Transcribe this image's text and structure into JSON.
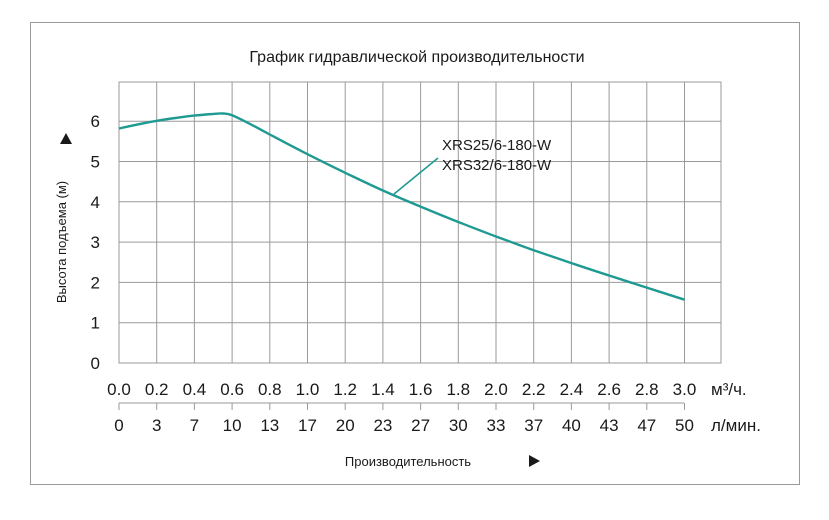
{
  "chart_data": {
    "type": "line",
    "title": "График гидравлической производительности",
    "ylabel": "Высота подъема (м)",
    "xlabel": "Производительность",
    "ylim": [
      0,
      6.5
    ],
    "xlim": [
      0,
      3.2
    ],
    "grid": true,
    "y_ticks": [
      "0",
      "1",
      "2",
      "3",
      "4",
      "5",
      "6"
    ],
    "x_ticks_m3h": [
      "0.0",
      "0.2",
      "0.4",
      "0.6",
      "0.8",
      "1.0",
      "1.2",
      "1.4",
      "1.6",
      "1.8",
      "2.0",
      "2.2",
      "2.4",
      "2.6",
      "2.8",
      "3.0"
    ],
    "x_ticks_lmin": [
      "0",
      "3",
      "7",
      "10",
      "13",
      "17",
      "20",
      "23",
      "27",
      "30",
      "33",
      "37",
      "40",
      "43",
      "47",
      "50"
    ],
    "x_unit_m3h": "м³/ч.",
    "x_unit_lmin": "л/мин.",
    "series": [
      {
        "name": "XRS25/6-180-W XRS32/6-180-W",
        "x": [
          0.0,
          0.1,
          0.2,
          0.3,
          0.4,
          0.5,
          0.55,
          0.6,
          0.7,
          0.8,
          1.0,
          1.2,
          1.4,
          1.6,
          1.8,
          2.0,
          2.2,
          2.4,
          2.6,
          2.8,
          3.0
        ],
        "y": [
          5.82,
          5.92,
          6.01,
          6.08,
          6.14,
          6.18,
          6.19,
          6.15,
          5.92,
          5.67,
          5.18,
          4.72,
          4.28,
          3.88,
          3.5,
          3.14,
          2.8,
          2.48,
          2.17,
          1.87,
          1.57
        ]
      }
    ],
    "legend_labels": [
      "XRS25/6-180-W",
      "XRS32/6-180-W"
    ],
    "color": "#1f9a93"
  }
}
